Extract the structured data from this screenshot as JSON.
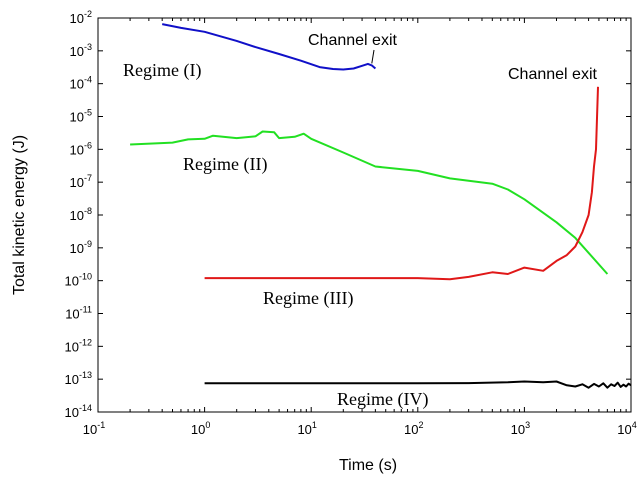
{
  "chart_data": {
    "type": "line",
    "xscale": "log",
    "yscale": "log",
    "xlim": [
      0.1,
      10000
    ],
    "ylim": [
      1e-14,
      0.01
    ],
    "xlabel": "Time (s)",
    "ylabel": "Total kinetic energy (J)",
    "x_ticks": [
      {
        "value": 0.1,
        "base": "10",
        "exp": "-1"
      },
      {
        "value": 1,
        "base": "10",
        "exp": "0"
      },
      {
        "value": 10,
        "base": "10",
        "exp": "1"
      },
      {
        "value": 100,
        "base": "10",
        "exp": "2"
      },
      {
        "value": 1000,
        "base": "10",
        "exp": "3"
      },
      {
        "value": 10000,
        "base": "10",
        "exp": "4"
      }
    ],
    "y_ticks": [
      {
        "value": 0.01,
        "base": "10",
        "exp": "-2"
      },
      {
        "value": 0.001,
        "base": "10",
        "exp": "-3"
      },
      {
        "value": 0.0001,
        "base": "10",
        "exp": "-4"
      },
      {
        "value": 1e-05,
        "base": "10",
        "exp": "-5"
      },
      {
        "value": 1e-06,
        "base": "10",
        "exp": "-6"
      },
      {
        "value": 1e-07,
        "base": "10",
        "exp": "-7"
      },
      {
        "value": 1e-08,
        "base": "10",
        "exp": "-8"
      },
      {
        "value": 1e-09,
        "base": "10",
        "exp": "-9"
      },
      {
        "value": 1e-10,
        "base": "10",
        "exp": "-10"
      },
      {
        "value": 1e-11,
        "base": "10",
        "exp": "-11"
      },
      {
        "value": 1e-12,
        "base": "10",
        "exp": "-12"
      },
      {
        "value": 1e-13,
        "base": "10",
        "exp": "-13"
      },
      {
        "value": 1e-14,
        "base": "10",
        "exp": "-14"
      }
    ],
    "series": [
      {
        "color": "#1010c8",
        "points": [
          [
            0.4,
            0.0065
          ],
          [
            0.6,
            0.005
          ],
          [
            1,
            0.0038
          ],
          [
            2,
            0.002
          ],
          [
            3,
            0.0013
          ],
          [
            5,
            0.0008
          ],
          [
            8,
            0.0005
          ],
          [
            12,
            0.00032
          ],
          [
            16,
            0.00028
          ],
          [
            20,
            0.00027
          ],
          [
            25,
            0.00029
          ],
          [
            30,
            0.00035
          ],
          [
            34,
            0.0004
          ],
          [
            37,
            0.00036
          ],
          [
            40,
            0.00029
          ]
        ]
      },
      {
        "color": "#22e022",
        "points": [
          [
            0.2,
            1.4e-06
          ],
          [
            0.5,
            1.6e-06
          ],
          [
            0.7,
            2e-06
          ],
          [
            1,
            2.1e-06
          ],
          [
            1.2,
            2.6e-06
          ],
          [
            2,
            2.2e-06
          ],
          [
            3,
            2.5e-06
          ],
          [
            3.5,
            3.5e-06
          ],
          [
            4.5,
            3.3e-06
          ],
          [
            5,
            2.2e-06
          ],
          [
            7,
            2.4e-06
          ],
          [
            8.5,
            3e-06
          ],
          [
            10,
            2.1e-06
          ],
          [
            20,
            8e-07
          ],
          [
            40,
            3e-07
          ],
          [
            100,
            2.2e-07
          ],
          [
            200,
            1.3e-07
          ],
          [
            500,
            9e-08
          ],
          [
            700,
            6e-08
          ],
          [
            1000,
            3e-08
          ],
          [
            2000,
            6e-09
          ],
          [
            3000,
            2e-09
          ],
          [
            6000,
            1.6e-10
          ]
        ]
      },
      {
        "color": "#e01818",
        "points": [
          [
            1,
            1.2e-10
          ],
          [
            10,
            1.2e-10
          ],
          [
            100,
            1.2e-10
          ],
          [
            200,
            1.1e-10
          ],
          [
            300,
            1.3e-10
          ],
          [
            500,
            1.8e-10
          ],
          [
            700,
            1.6e-10
          ],
          [
            1000,
            2.5e-10
          ],
          [
            1500,
            2e-10
          ],
          [
            2000,
            4e-10
          ],
          [
            2500,
            6e-10
          ],
          [
            3000,
            1.1e-09
          ],
          [
            3500,
            3e-09
          ],
          [
            4000,
            1e-08
          ],
          [
            4300,
            5e-08
          ],
          [
            4500,
            3e-07
          ],
          [
            4700,
            1e-06
          ],
          [
            4900,
            8e-05
          ]
        ]
      },
      {
        "color": "#000000",
        "points": [
          [
            1,
            7.5e-14
          ],
          [
            10,
            7.5e-14
          ],
          [
            100,
            7.5e-14
          ],
          [
            300,
            7.6e-14
          ],
          [
            700,
            8e-14
          ],
          [
            1000,
            8.5e-14
          ],
          [
            1500,
            8e-14
          ],
          [
            2000,
            8.5e-14
          ],
          [
            2500,
            6.5e-14
          ],
          [
            3000,
            6e-14
          ],
          [
            3500,
            7e-14
          ],
          [
            4000,
            5.5e-14
          ],
          [
            4500,
            7.2e-14
          ],
          [
            5000,
            6e-14
          ],
          [
            5500,
            7.5e-14
          ],
          [
            6000,
            5.5e-14
          ],
          [
            6500,
            7e-14
          ],
          [
            7000,
            6.2e-14
          ],
          [
            7500,
            7.8e-14
          ],
          [
            8000,
            5.8e-14
          ],
          [
            8500,
            6.8e-14
          ],
          [
            9000,
            6e-14
          ],
          [
            9500,
            7.3e-14
          ],
          [
            10000,
            6.5e-14
          ]
        ]
      }
    ],
    "annotations": [
      {
        "key": "regime1",
        "text": "Regime (I)"
      },
      {
        "key": "regime2",
        "text": "Regime (II)"
      },
      {
        "key": "regime3",
        "text": "Regime (III)"
      },
      {
        "key": "regime4",
        "text": "Regime (IV)"
      },
      {
        "key": "exit1",
        "text": "Channel exit"
      },
      {
        "key": "exit2",
        "text": "Channel exit"
      }
    ],
    "grid": false
  }
}
